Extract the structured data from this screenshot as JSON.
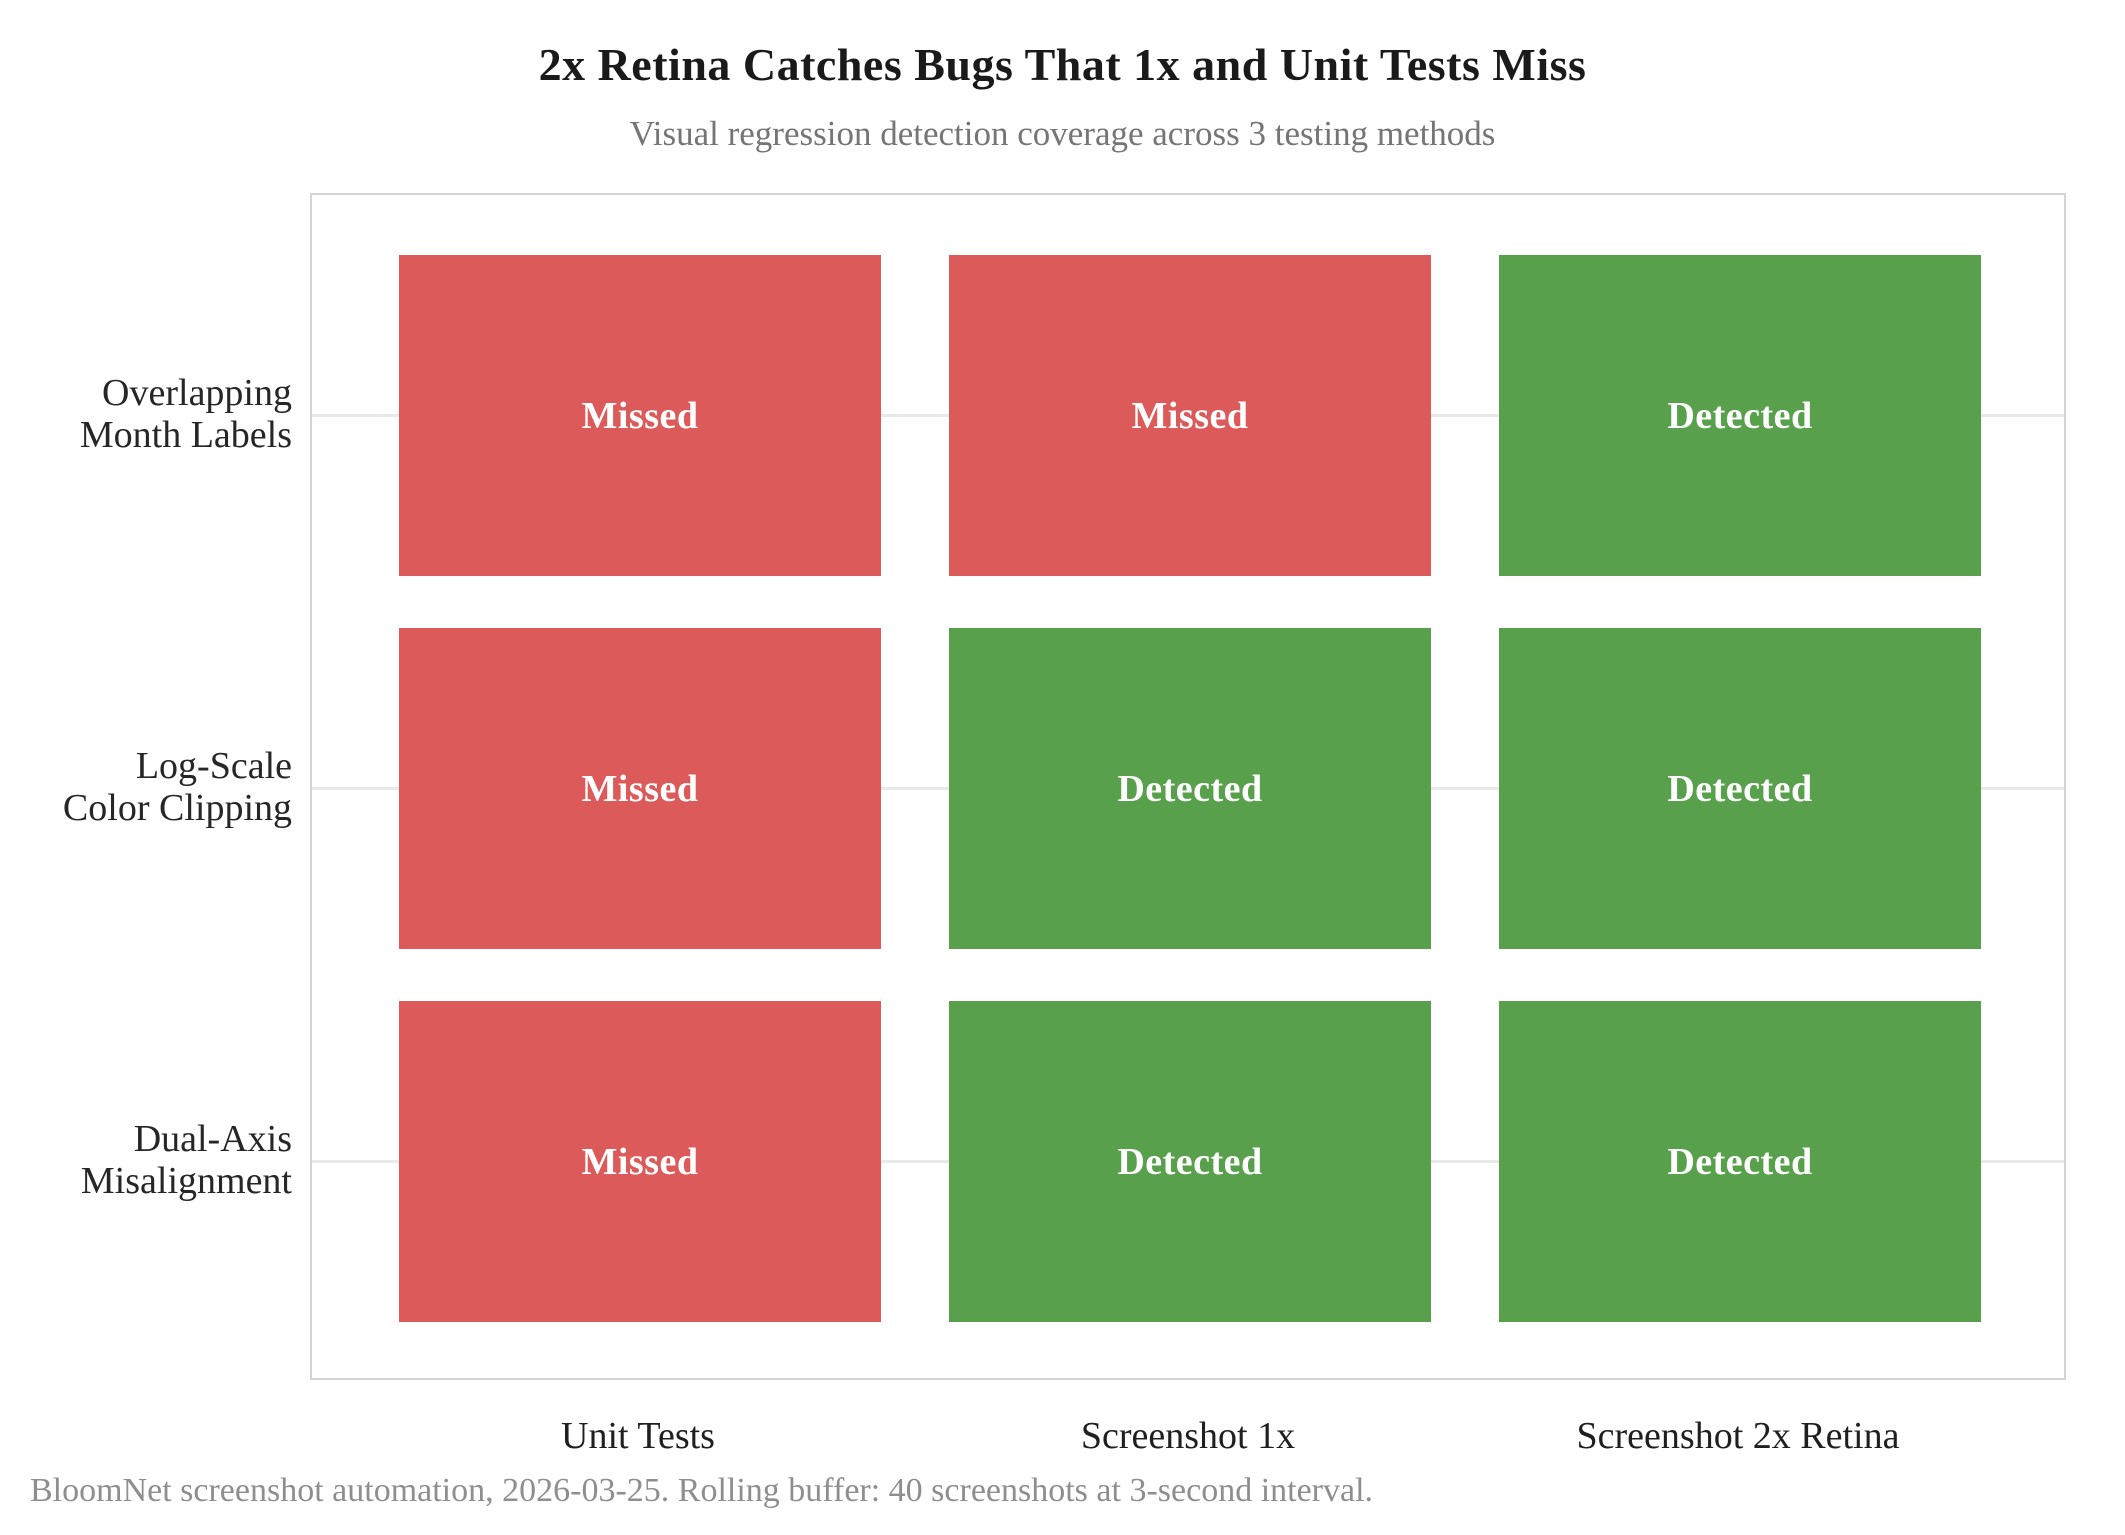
{
  "chart_data": {
    "type": "heatmap",
    "title": "2x Retina Catches Bugs That 1x and Unit Tests Miss",
    "subtitle": "Visual regression detection coverage across 3 testing methods",
    "row_labels": [
      [
        "Overlapping",
        "Month Labels"
      ],
      [
        "Log-Scale",
        "Color Clipping"
      ],
      [
        "Dual-Axis",
        "Misalignment"
      ]
    ],
    "col_labels": [
      "Unit Tests",
      "Screenshot 1x",
      "Screenshot 2x Retina"
    ],
    "cells": [
      [
        "Missed",
        "Missed",
        "Detected"
      ],
      [
        "Missed",
        "Detected",
        "Detected"
      ],
      [
        "Missed",
        "Detected",
        "Detected"
      ]
    ],
    "status_colors": {
      "Missed": "#dc5a5a",
      "Detected": "#58a04c"
    },
    "cell_text_color": "#ffffff",
    "grid": true,
    "legend_position": "none"
  },
  "footer": {
    "caption": "BloomNet screenshot automation, 2026-03-25. Rolling buffer: 40 screenshots at 3-second interval."
  }
}
